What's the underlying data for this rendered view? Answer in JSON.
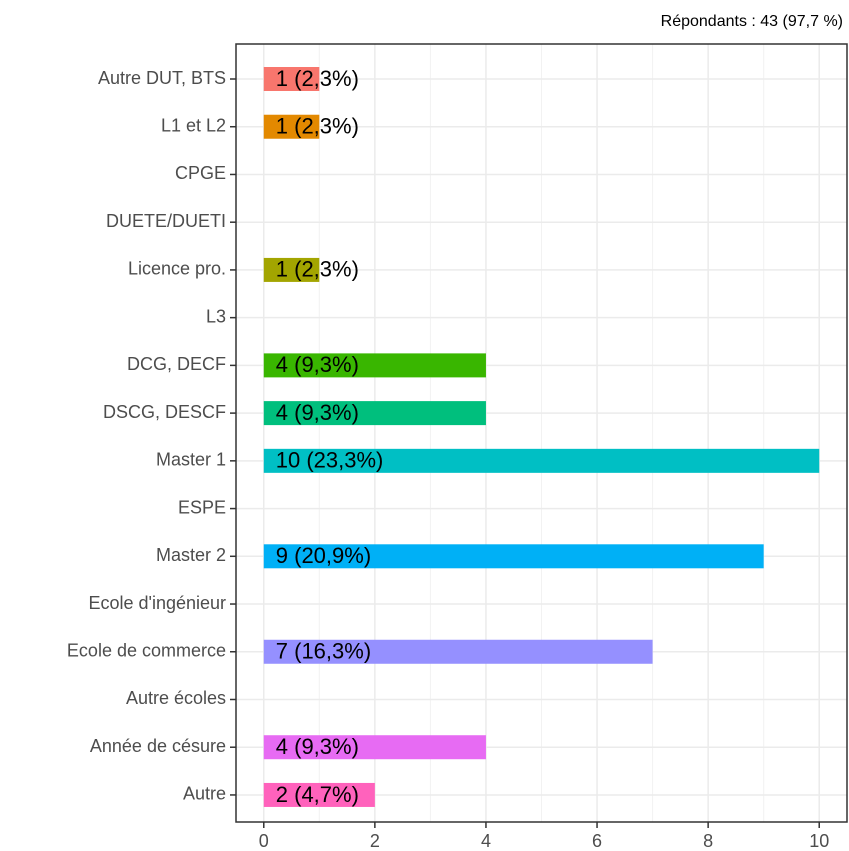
{
  "chart_data": {
    "type": "bar",
    "orientation": "horizontal",
    "subtitle": "Répondants : 43 (97,7 %)",
    "categories": [
      "Autre DUT, BTS",
      "L1 et L2",
      "CPGE",
      "DUETE/DUETI",
      "Licence pro.",
      "L3",
      "DCG, DECF",
      "DSCG, DESCF",
      "Master 1",
      "ESPE",
      "Master 2",
      "Ecole d'ingénieur",
      "Ecole de commerce",
      "Autre écoles",
      "Année de césure",
      "Autre"
    ],
    "values": [
      1,
      1,
      null,
      null,
      1,
      null,
      4,
      4,
      10,
      null,
      9,
      null,
      7,
      null,
      4,
      2
    ],
    "value_labels": [
      "1 (2,3%)",
      "1 (2,3%)",
      null,
      null,
      "1 (2,3%)",
      null,
      "4 (9,3%)",
      "4 (9,3%)",
      "10 (23,3%)",
      null,
      "9 (20,9%)",
      null,
      "7 (16,3%)",
      null,
      "4 (9,3%)",
      "2 (4,7%)"
    ],
    "colors": [
      "#F8766D",
      "#E38900",
      null,
      null,
      "#A3A500",
      null,
      "#39B600",
      "#00BF7D",
      "#00BFC4",
      null,
      "#00B0F6",
      null,
      "#9590FF",
      null,
      "#E76BF3",
      "#FF62BC"
    ],
    "xlim": [
      -0.5,
      10.5
    ],
    "xticks": [
      0,
      2,
      4,
      6,
      8,
      10
    ],
    "minor_xticks": [
      1,
      3,
      5,
      7,
      9
    ],
    "grid": true
  }
}
